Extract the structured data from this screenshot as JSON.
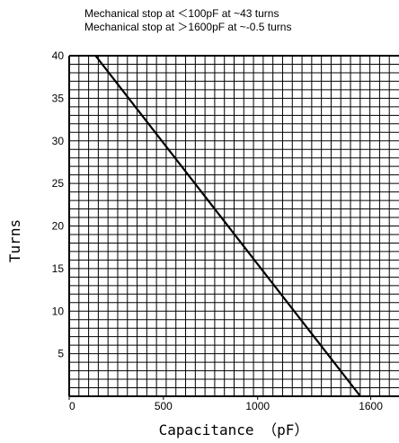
{
  "chart_data": {
    "type": "line",
    "title": "",
    "annotations": [
      "Mechanical stop at ＜100pF at ~43 turns",
      "Mechanical stop at ＞1600pF at ~-0.5 turns"
    ],
    "xlabel": "Capacitance （pF）",
    "ylabel": "Turns",
    "xlim": [
      0,
      1750
    ],
    "ylim": [
      0,
      40
    ],
    "x_ticks": [
      {
        "value": 0,
        "label": "0"
      },
      {
        "value": 500,
        "label": "500"
      },
      {
        "value": 1000,
        "label": "1000"
      },
      {
        "value": 1600,
        "label": "1600"
      }
    ],
    "y_ticks": [
      {
        "value": 5,
        "label": "5"
      },
      {
        "value": 10,
        "label": "10"
      },
      {
        "value": 15,
        "label": "15"
      },
      {
        "value": 20,
        "label": "20"
      },
      {
        "value": 25,
        "label": "25"
      },
      {
        "value": 30,
        "label": "30"
      },
      {
        "value": 35,
        "label": "35"
      },
      {
        "value": 40,
        "label": "40"
      }
    ],
    "grid": true,
    "series": [
      {
        "color": "#000000",
        "x": [
          140,
          1545
        ],
        "y": [
          40,
          0
        ]
      }
    ]
  }
}
